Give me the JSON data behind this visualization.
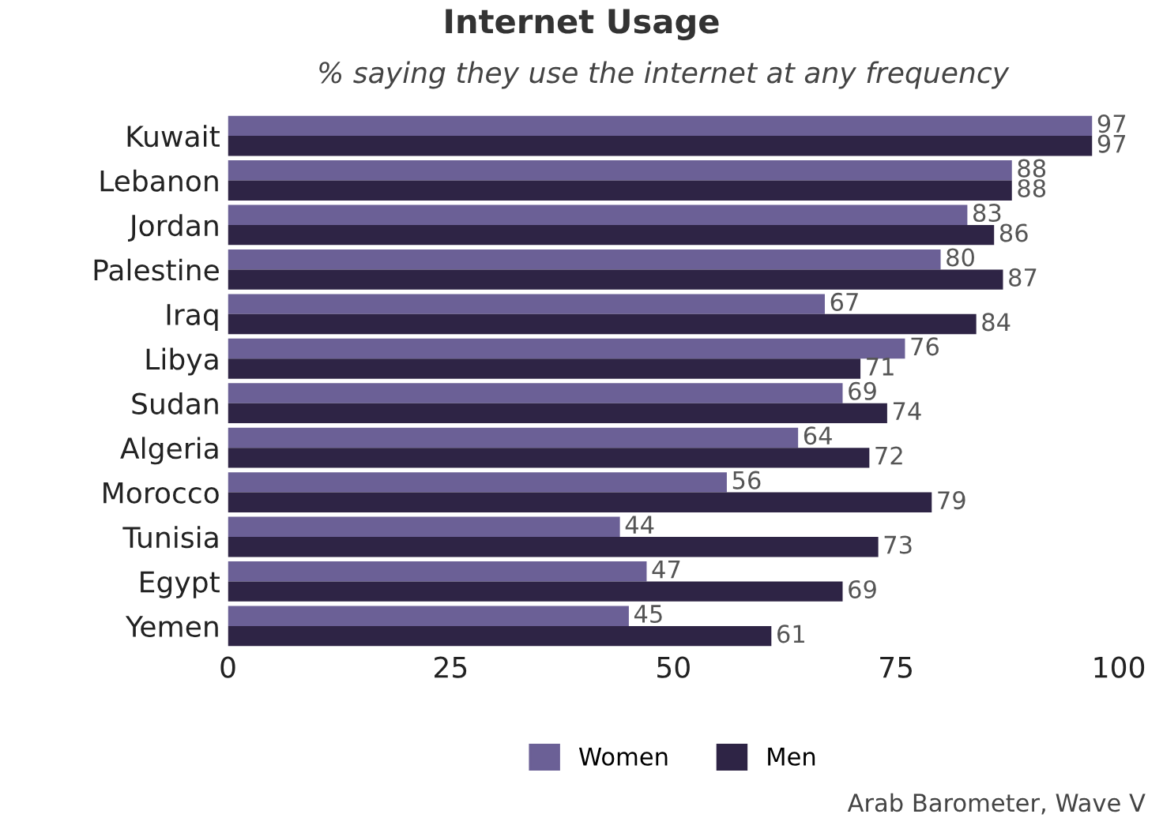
{
  "chart_data": {
    "type": "bar",
    "orientation": "horizontal",
    "title": "Internet Usage",
    "subtitle": "% saying they use the internet at any frequency",
    "categories": [
      "Kuwait",
      "Lebanon",
      "Jordan",
      "Palestine",
      "Iraq",
      "Libya",
      "Sudan",
      "Algeria",
      "Morocco",
      "Tunisia",
      "Egypt",
      "Yemen"
    ],
    "series": [
      {
        "name": "Women",
        "color": "#6b6096",
        "values": [
          97,
          88,
          83,
          80,
          67,
          76,
          69,
          64,
          56,
          44,
          47,
          45
        ]
      },
      {
        "name": "Men",
        "color": "#2e2445",
        "values": [
          97,
          88,
          86,
          87,
          84,
          71,
          74,
          72,
          79,
          73,
          69,
          61
        ]
      }
    ],
    "xlim": [
      0,
      100
    ],
    "xticks": [
      0,
      25,
      50,
      75,
      100
    ],
    "grid": false,
    "legend": "bottom",
    "data_labels": true,
    "annotations": [
      "Arab Barometer, Wave V"
    ]
  }
}
